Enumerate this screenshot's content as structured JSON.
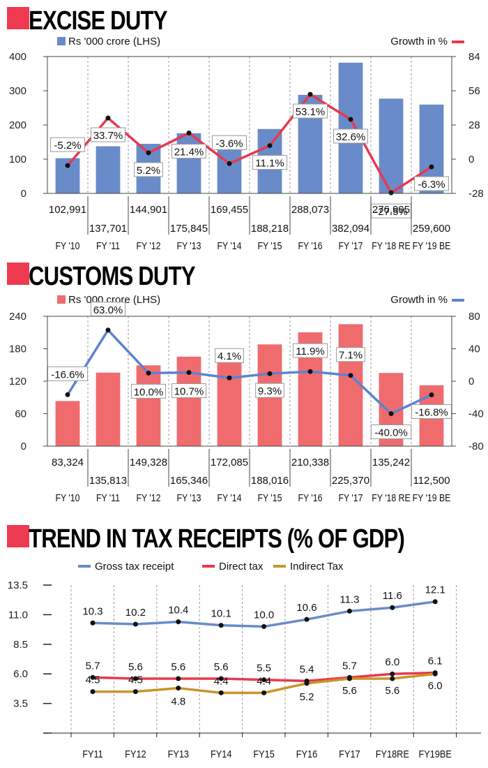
{
  "chart_data": [
    {
      "type": "bar",
      "title": "EXCISE DUTY",
      "categories": [
        "FY '10",
        "FY '11",
        "FY '12",
        "FY '13",
        "FY '14",
        "FY '15",
        "FY '16",
        "FY '17",
        "FY '18 RE",
        "FY '19 BE"
      ],
      "value_labels": [
        "102,991",
        "137,701",
        "144,901",
        "175,845",
        "169,455",
        "188,218",
        "288,073",
        "382,094",
        "276,995",
        "259,600"
      ],
      "series": [
        {
          "name": "Rs '000 crore (LHS)",
          "axis": "left",
          "type": "bar",
          "values": [
            102.991,
            137.701,
            144.901,
            175.845,
            169.455,
            188.218,
            288.073,
            382.094,
            276.995,
            259.6
          ]
        },
        {
          "name": "Growth in %",
          "axis": "right",
          "type": "line",
          "values": [
            -5.2,
            33.7,
            5.2,
            21.4,
            -3.6,
            11.1,
            53.1,
            32.6,
            -27.5,
            -6.3
          ],
          "labels": [
            "-5.2%",
            "33.7%",
            "5.2%",
            "21.4%",
            "-3.6%",
            "11.1%",
            "53.1%",
            "32.6%",
            "-27.5%",
            "-6.3%"
          ]
        }
      ],
      "ylim": [
        0,
        400
      ],
      "yticks": [
        "0",
        "100",
        "200",
        "300",
        "400"
      ],
      "y2lim": [
        -28,
        84
      ],
      "y2ticks": [
        "-28",
        "0",
        "28",
        "56",
        "84"
      ],
      "bar_color": "#6a8bc9",
      "line_color": "#e8384f"
    },
    {
      "type": "bar",
      "title": "CUSTOMS  DUTY",
      "categories": [
        "FY '10",
        "FY '11",
        "FY '12",
        "FY '13",
        "FY '14",
        "FY '15",
        "FY '16",
        "FY '17",
        "FY '18 RE",
        "FY '19 BE"
      ],
      "value_labels": [
        "83,324",
        "135,813",
        "149,328",
        "165,346",
        "172,085",
        "188,016",
        "210,338",
        "225,370",
        "135,242",
        "112,500"
      ],
      "series": [
        {
          "name": "Rs '000 crore (LHS)",
          "axis": "left",
          "type": "bar",
          "values": [
            83.324,
            135.813,
            149.328,
            165.346,
            172.085,
            188.016,
            210.338,
            225.37,
            135.242,
            112.5
          ]
        },
        {
          "name": "Growth in %",
          "axis": "right",
          "type": "line",
          "values": [
            -16.6,
            63.0,
            10.0,
            10.7,
            4.1,
            9.3,
            11.9,
            7.1,
            -40.0,
            -16.8
          ],
          "labels": [
            "-16.6%",
            "63.0%",
            "10.0%",
            "10.7%",
            "4.1%",
            "9.3%",
            "11.9%",
            "7.1%",
            "-40.0%",
            "-16.8%"
          ]
        }
      ],
      "ylim": [
        0,
        240
      ],
      "yticks": [
        "0",
        "60",
        "120",
        "180",
        "240"
      ],
      "y2lim": [
        -80,
        80
      ],
      "y2ticks": [
        "-80",
        "-40",
        "0",
        "40",
        "80"
      ],
      "bar_color": "#f06b6e",
      "line_color": "#5b83cf"
    },
    {
      "type": "line",
      "title": "TREND IN TAX RECEIPTS (% OF GDP)",
      "categories": [
        "FY11",
        "FY12",
        "FY13",
        "FY14",
        "FY15",
        "FY16",
        "FY17",
        "FY18RE",
        "FY19BE"
      ],
      "series": [
        {
          "name": "Gross tax receipt",
          "color": "#6a8bc9",
          "values": [
            10.3,
            10.2,
            10.4,
            10.1,
            10.0,
            10.6,
            11.3,
            11.6,
            12.1
          ],
          "labels": [
            "10.3",
            "10.2",
            "10.4",
            "10.1",
            "10.0",
            "10.6",
            "11.3",
            "11.6",
            "12.1"
          ]
        },
        {
          "name": "Direct tax",
          "color": "#e8384f",
          "values": [
            5.7,
            5.6,
            5.6,
            5.6,
            5.5,
            5.4,
            5.7,
            6.0,
            6.1
          ],
          "labels": [
            "5.7",
            "5.6",
            "5.6",
            "5.6",
            "5.5",
            "5.4",
            "5.7",
            "6.0",
            "6.1"
          ]
        },
        {
          "name": "Indirect Tax",
          "color": "#c8952a",
          "values": [
            4.5,
            4.5,
            4.8,
            4.4,
            4.4,
            5.2,
            5.6,
            5.6,
            6.0
          ],
          "labels": [
            "4.5",
            "4.5",
            "4.8",
            "4.4",
            "4.4",
            "5.2",
            "5.6",
            "5.6",
            "6.0"
          ]
        }
      ],
      "ylim": [
        1.0,
        13.5
      ],
      "yticks": [
        "3.5",
        "6.0",
        "8.5",
        "11.0",
        "13.5"
      ],
      "title_marker_color": "#ee3a50"
    }
  ]
}
